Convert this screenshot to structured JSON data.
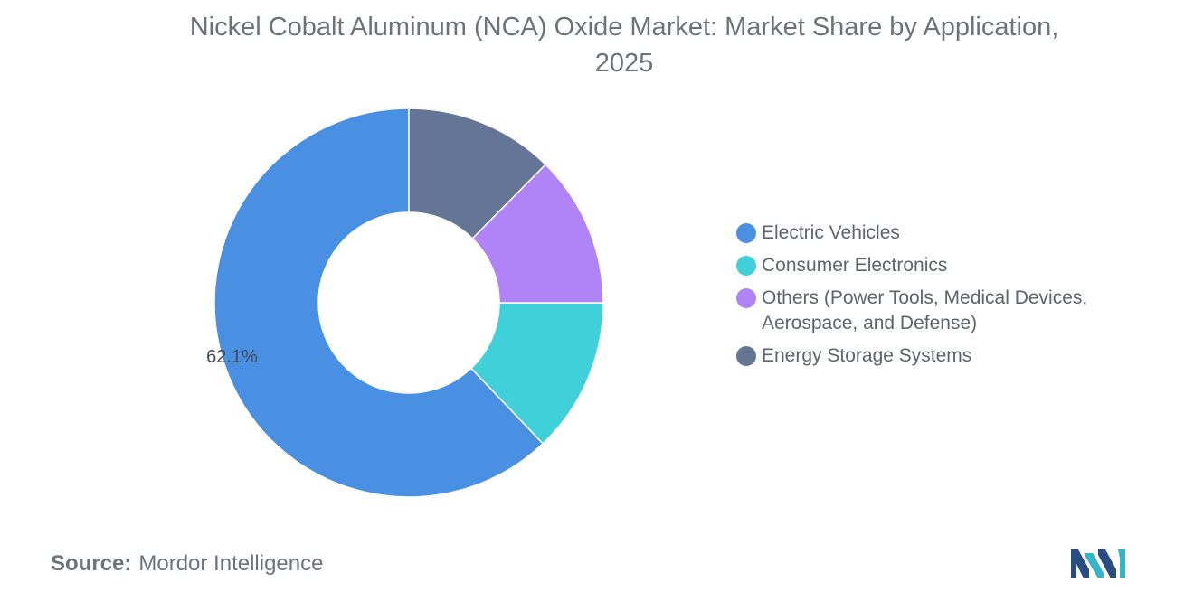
{
  "title_line1": "Nickel Cobalt Aluminum (NCA) Oxide Market: Market Share by Application,",
  "title_line2": "2025",
  "chart_data": {
    "type": "pie",
    "donut": true,
    "title": "Nickel Cobalt Aluminum (NCA) Oxide Market: Market Share by Application, 2025",
    "slices": [
      {
        "label": "Electric Vehicles",
        "value": 62.1,
        "color": "#4a90e2",
        "data_label": "62.1%"
      },
      {
        "label": "Consumer Electronics",
        "value": 12.9,
        "color": "#3fd0d9",
        "data_label": ""
      },
      {
        "label": "Others (Power Tools, Medical Devices, Aerospace, and Defense)",
        "value": 12.6,
        "color": "#b084f7",
        "data_label": ""
      },
      {
        "label": "Energy Storage Systems",
        "value": 12.4,
        "color": "#647595",
        "data_label": ""
      }
    ],
    "legend_position": "right"
  },
  "legend": [
    {
      "label": "Electric Vehicles",
      "color": "#4a90e2"
    },
    {
      "label": "Consumer Electronics",
      "color": "#3fd0d9"
    },
    {
      "label": "Others (Power Tools, Medical Devices, Aerospace, and Defense)",
      "color": "#b084f7"
    },
    {
      "label": "Energy Storage Systems",
      "color": "#647595"
    }
  ],
  "source": {
    "label": "Source:",
    "value": "Mordor Intelligence"
  },
  "logo": {
    "icon": "mordor-intelligence-logo",
    "colors": [
      "#2b4c7e",
      "#37b5c8"
    ]
  }
}
